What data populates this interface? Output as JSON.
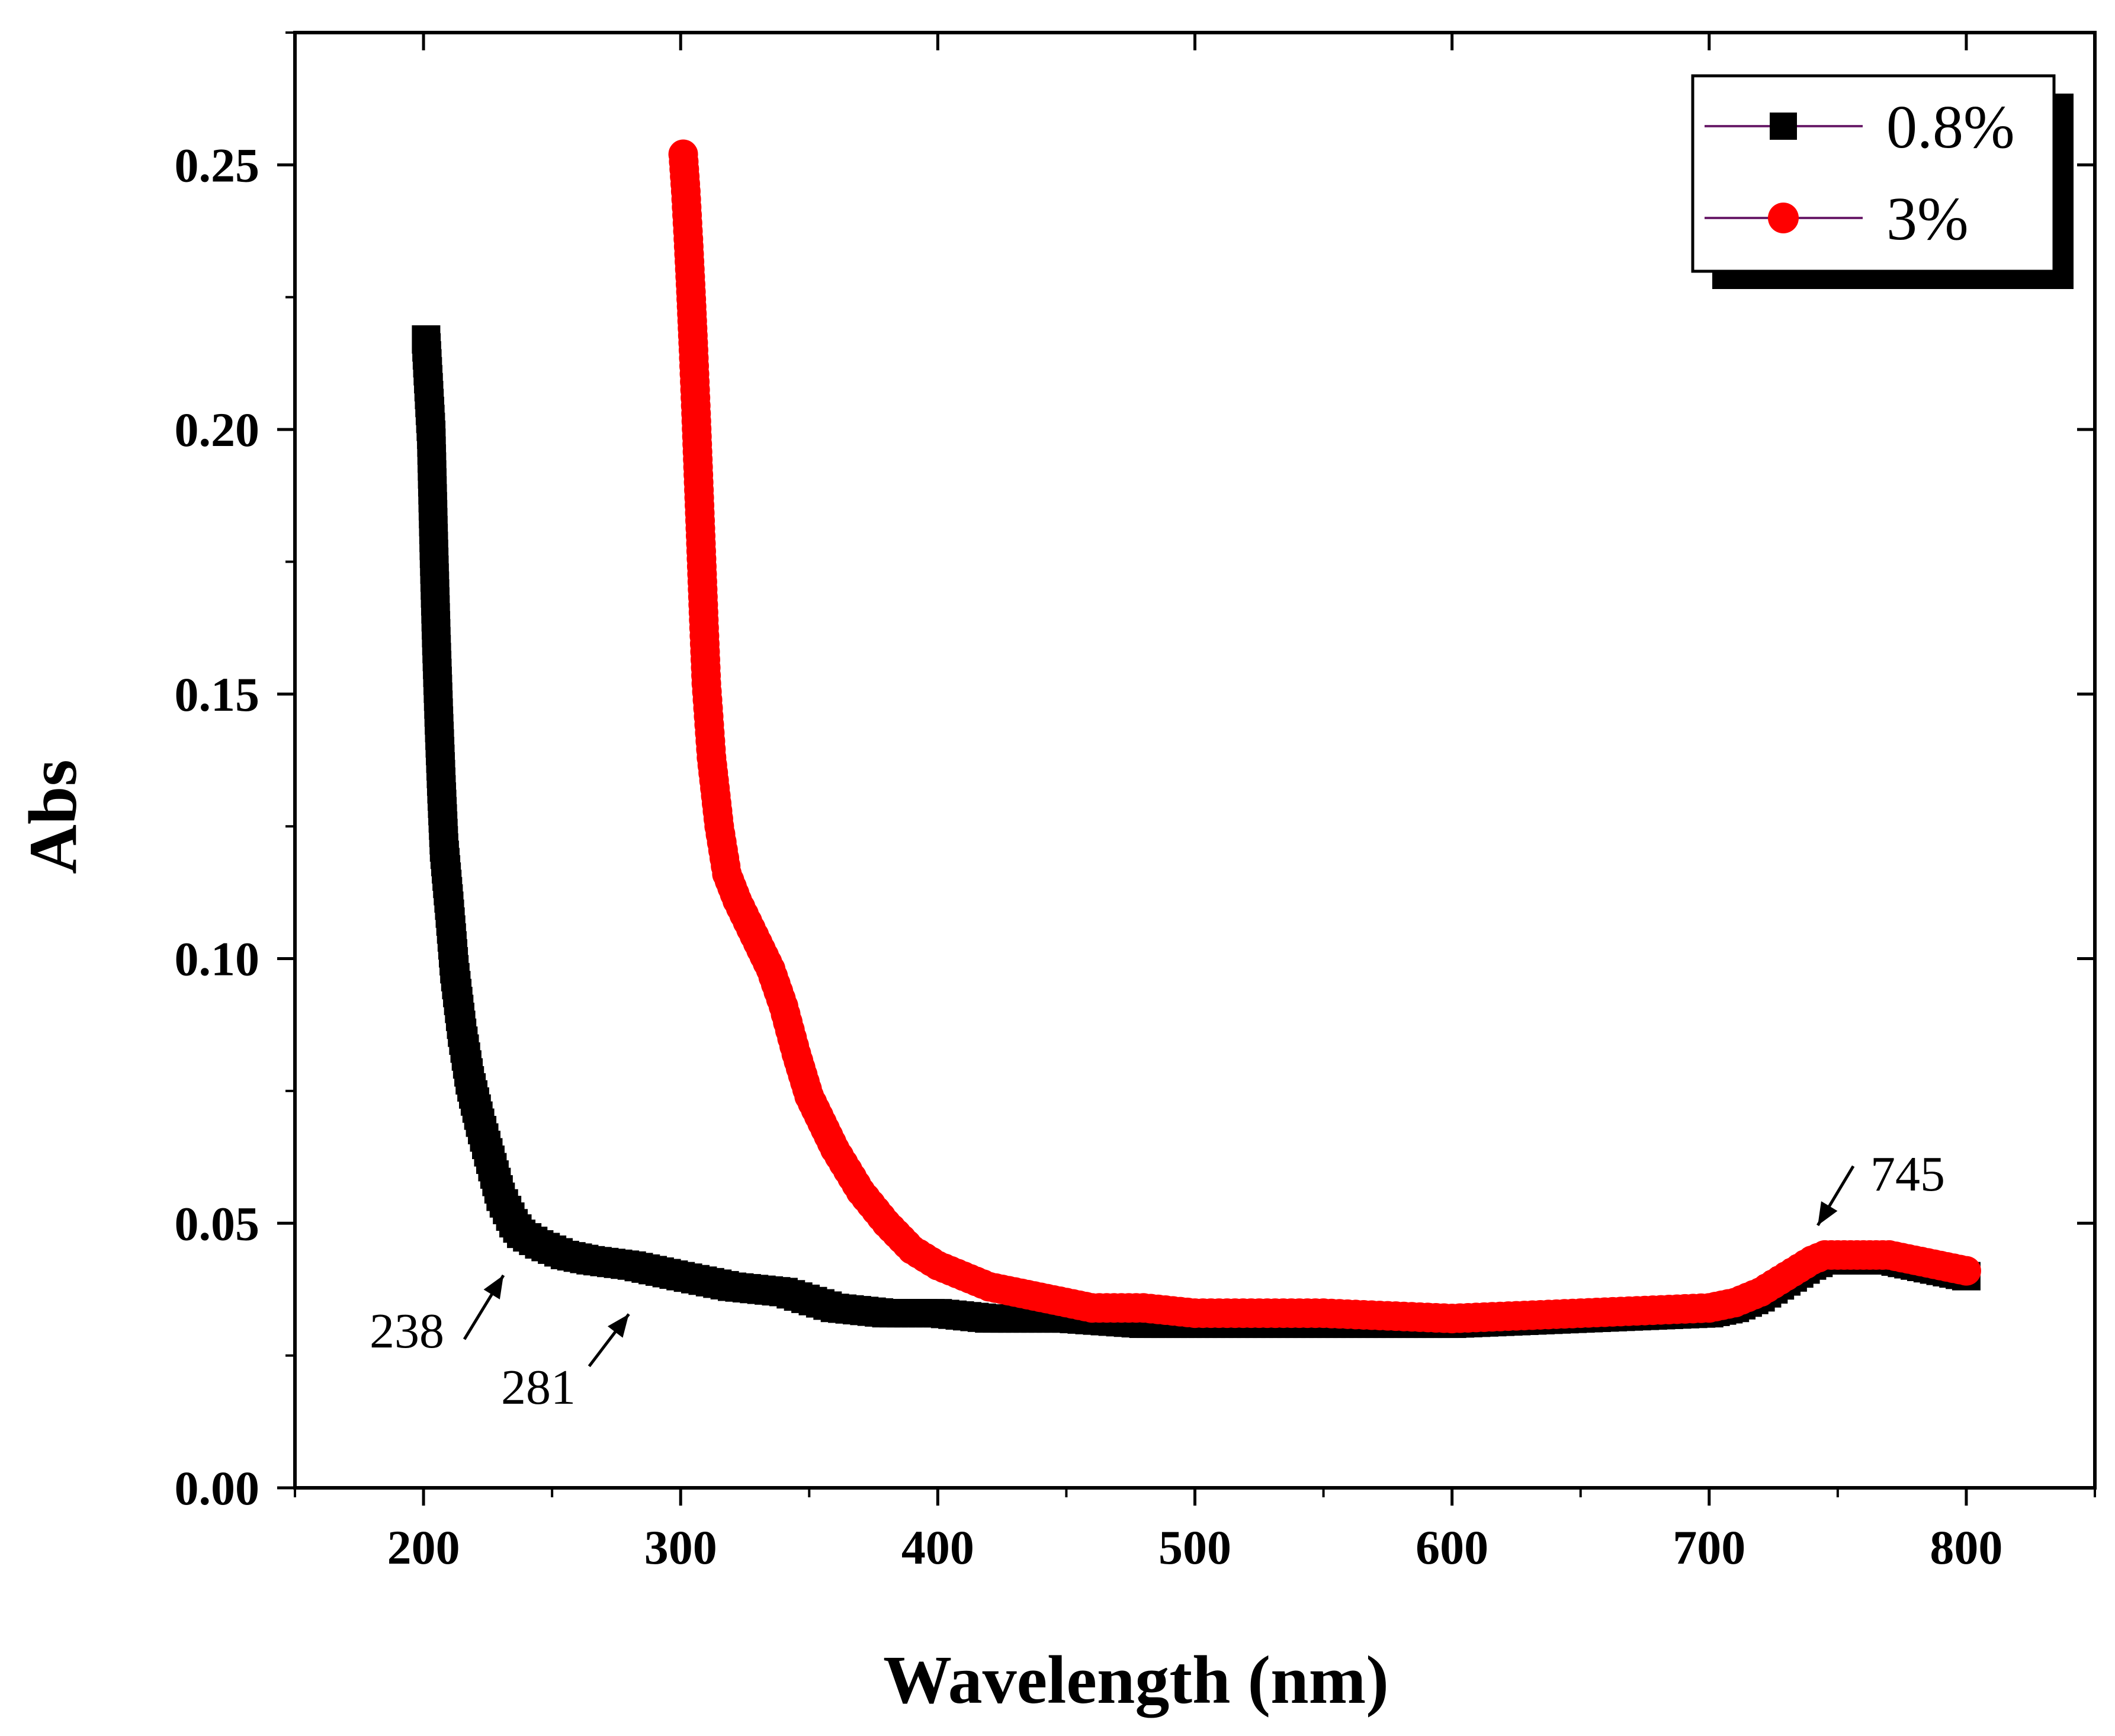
{
  "chart_data": {
    "type": "scatter",
    "title": "",
    "xlabel": "Wavelength (nm)",
    "ylabel": "Abs",
    "xlim": [
      150,
      850
    ],
    "ylim": [
      0.0,
      0.275
    ],
    "xticks": [
      200,
      300,
      400,
      500,
      600,
      700,
      800
    ],
    "xtick_labels": [
      "200",
      "300",
      "400",
      "500",
      "600",
      "700",
      "800"
    ],
    "yticks": [
      0.0,
      0.05,
      0.1,
      0.15,
      0.2,
      0.25
    ],
    "ytick_labels": [
      "0.00",
      "0.05",
      "0.10",
      "0.15",
      "0.20",
      "0.25"
    ],
    "grid": false,
    "legend_position": "top-right",
    "series": [
      {
        "name": "0.8%",
        "color": "#000000",
        "line_color": "#6b1f6b",
        "marker": "square",
        "x": [
          201,
          203,
          204,
          205,
          206,
          207,
          208,
          210,
          212,
          215,
          218,
          222,
          226,
          230,
          235,
          238,
          245,
          255,
          265,
          281,
          300,
          320,
          340,
          360,
          380,
          400,
          420,
          450,
          480,
          500,
          550,
          600,
          650,
          700,
          710,
          720,
          730,
          740,
          745,
          750,
          760,
          770,
          780,
          790,
          800
        ],
        "y": [
          0.217,
          0.199,
          0.178,
          0.16,
          0.145,
          0.132,
          0.121,
          0.11,
          0.098,
          0.086,
          0.077,
          0.069,
          0.062,
          0.055,
          0.05,
          0.048,
          0.046,
          0.044,
          0.043,
          0.042,
          0.04,
          0.038,
          0.037,
          0.034,
          0.033,
          0.033,
          0.032,
          0.032,
          0.031,
          0.031,
          0.031,
          0.031,
          0.032,
          0.033,
          0.034,
          0.036,
          0.039,
          0.042,
          0.043,
          0.043,
          0.043,
          0.043,
          0.042,
          0.041,
          0.04
        ]
      },
      {
        "name": "3%",
        "color": "#ff0000",
        "line_color": "#6b1f6b",
        "marker": "circle",
        "x": [
          301,
          302,
          303,
          304,
          305,
          306,
          307,
          308,
          309,
          310,
          312,
          315,
          318,
          322,
          326,
          330,
          335,
          340,
          345,
          350,
          360,
          370,
          380,
          390,
          400,
          410,
          420,
          430,
          440,
          450,
          460,
          480,
          500,
          550,
          600,
          650,
          700,
          710,
          720,
          730,
          740,
          745,
          750,
          760,
          770,
          780,
          790,
          800
        ],
        "y": [
          0.252,
          0.245,
          0.236,
          0.226,
          0.215,
          0.203,
          0.19,
          0.177,
          0.164,
          0.152,
          0.138,
          0.125,
          0.116,
          0.111,
          0.107,
          0.103,
          0.098,
          0.091,
          0.082,
          0.074,
          0.064,
          0.056,
          0.05,
          0.045,
          0.042,
          0.04,
          0.038,
          0.037,
          0.036,
          0.035,
          0.034,
          0.034,
          0.033,
          0.033,
          0.032,
          0.033,
          0.034,
          0.035,
          0.037,
          0.04,
          0.043,
          0.044,
          0.044,
          0.044,
          0.044,
          0.043,
          0.042,
          0.041
        ]
      }
    ],
    "annotations": [
      {
        "text": "238",
        "x": 238,
        "y": 0.048
      },
      {
        "text": "281",
        "x": 281,
        "y": 0.042
      },
      {
        "text": "745",
        "x": 745,
        "y": 0.044
      }
    ]
  }
}
